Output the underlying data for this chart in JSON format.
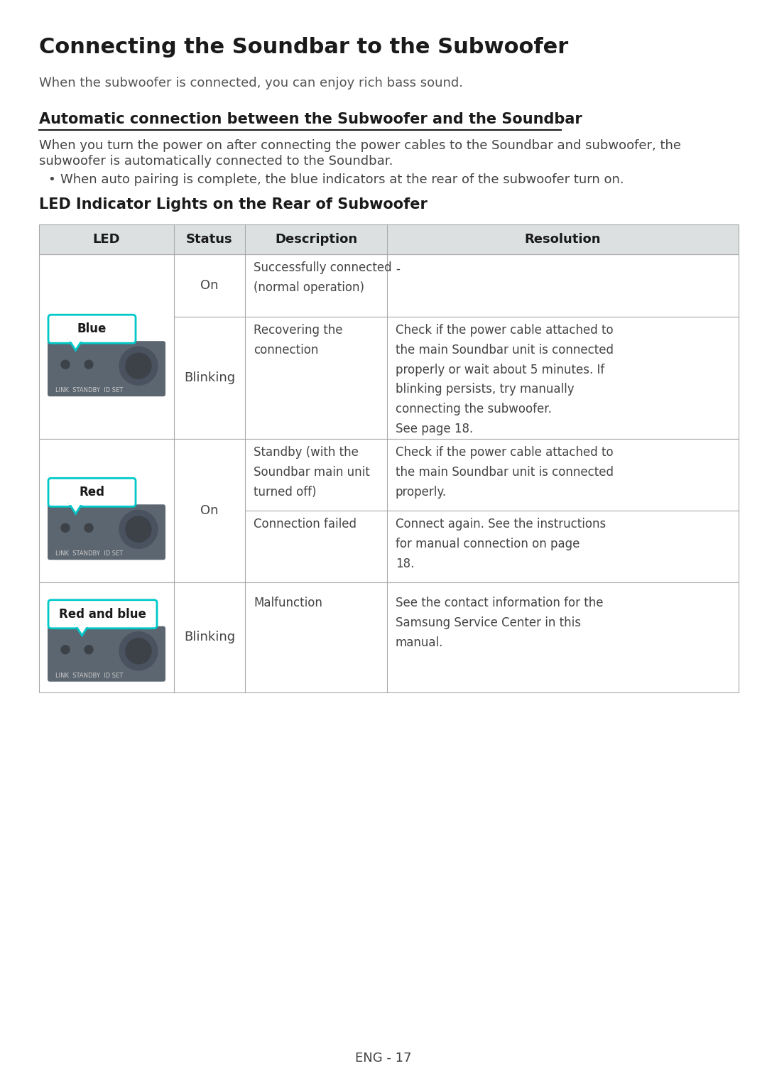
{
  "title": "Connecting the Soundbar to the Subwoofer",
  "subtitle": "When the subwoofer is connected, you can enjoy rich bass sound.",
  "section_title": "Automatic connection between the Subwoofer and the Soundbar",
  "section_body_1": "When you turn the power on after connecting the power cables to the Soundbar and subwoofer, the",
  "section_body_2": "subwoofer is automatically connected to the Soundbar.",
  "bullet": "When auto pairing is complete, the blue indicators at the rear of the subwoofer turn on.",
  "table_title": "LED Indicator Lights on the Rear of Subwoofer",
  "col_headers": [
    "LED",
    "Status",
    "Description",
    "Resolution"
  ],
  "header_bg": "#dce0e0",
  "table_border": "#aaaaaa",
  "cyan": "#00c8c8",
  "bg_color": "#ffffff",
  "page_footer": "ENG - 17",
  "row0_sub0_status": "On",
  "row0_sub0_desc": "Successfully connected\n(normal operation)",
  "row0_sub0_res": "-",
  "row0_sub1_status": "Blinking",
  "row0_sub1_desc": "Recovering the\nconnection",
  "row0_sub1_res": "Check if the power cable attached to\nthe main Soundbar unit is connected\nproperly or wait about 5 minutes. If\nblinking persists, try manually\nconnecting the subwoofer.\nSee page 18.",
  "row1_status": "On",
  "row1_desc_top": "Standby (with the\nSoundbar main unit\nturned off)",
  "row1_res_top": "Check if the power cable attached to\nthe main Soundbar unit is connected\nproperly.",
  "row1_desc_bot": "Connection failed",
  "row1_res_bot": "Connect again. See the instructions\nfor manual connection on page\n18.",
  "row2_status": "Blinking",
  "row2_desc": "Malfunction",
  "row2_res": "See the contact information for the\nSamsung Service Center in this\nmanual."
}
